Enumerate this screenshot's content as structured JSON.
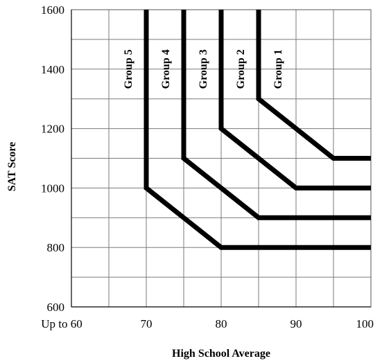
{
  "chart_data": {
    "type": "line",
    "xlabel": "High School Average",
    "ylabel": "SAT Score",
    "x_tick_labels": [
      "Up to 60",
      "70",
      "80",
      "90",
      "100"
    ],
    "y_tick_labels": [
      "600",
      "800",
      "1000",
      "1200",
      "1400",
      "1600"
    ],
    "xlim": [
      60,
      100
    ],
    "ylim": [
      600,
      1600
    ],
    "x_ticks": [
      60,
      70,
      80,
      90,
      100
    ],
    "y_ticks": [
      600,
      800,
      1000,
      1200,
      1400,
      1600
    ],
    "grid": true,
    "series": [
      {
        "name": "Group 1",
        "points": [
          [
            85,
            1600
          ],
          [
            85,
            1300
          ],
          [
            95,
            1100
          ],
          [
            100,
            1100
          ]
        ]
      },
      {
        "name": "Group 2",
        "points": [
          [
            80,
            1600
          ],
          [
            80,
            1200
          ],
          [
            90,
            1000
          ],
          [
            100,
            1000
          ]
        ]
      },
      {
        "name": "Group 3",
        "points": [
          [
            75,
            1600
          ],
          [
            75,
            1100
          ],
          [
            85,
            900
          ],
          [
            100,
            900
          ]
        ]
      },
      {
        "name": "Group 4",
        "points": [
          [
            70,
            1600
          ],
          [
            70,
            1000
          ],
          [
            80,
            800
          ],
          [
            100,
            800
          ]
        ]
      }
    ],
    "region_labels": [
      {
        "text": "Group 5",
        "x": 67.5,
        "y": 1400
      },
      {
        "text": "Group 4",
        "x": 72.5,
        "y": 1400
      },
      {
        "text": "Group 3",
        "x": 77.5,
        "y": 1400
      },
      {
        "text": "Group 2",
        "x": 82.5,
        "y": 1400
      },
      {
        "text": "Group 1",
        "x": 87.5,
        "y": 1400
      }
    ]
  }
}
